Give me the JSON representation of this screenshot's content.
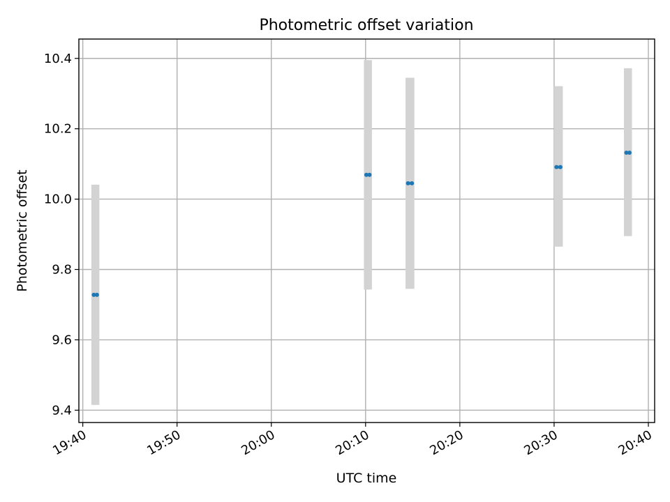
{
  "chart_data": {
    "type": "scatter",
    "title": "Photometric offset variation",
    "xlabel": "UTC time",
    "ylabel": "Photometric offset",
    "x_tick_labels": [
      "19:40",
      "19:50",
      "20:00",
      "20:10",
      "20:20",
      "20:30",
      "20:40"
    ],
    "y_tick_values": [
      9.4,
      9.6,
      9.8,
      10.0,
      10.2,
      10.4
    ],
    "y_tick_labels": [
      "9.4",
      "9.6",
      "9.8",
      "10.0",
      "10.2",
      "10.4"
    ],
    "xlim": [
      "19:39:35",
      "20:40:40"
    ],
    "ylim": [
      9.365,
      10.455
    ],
    "grid": true,
    "legend": "none",
    "errorbar_color": "#d3d3d3",
    "marker_color": "#1f77b4",
    "points": [
      {
        "x": "19:41:10",
        "x2": "19:41:30",
        "y": 9.728,
        "y_low": 9.415,
        "y_high": 10.041
      },
      {
        "x": "20:10:05",
        "x2": "20:10:25",
        "y": 10.069,
        "y_low": 9.743,
        "y_high": 10.395
      },
      {
        "x": "20:14:30",
        "x2": "20:14:55",
        "y": 10.045,
        "y_low": 9.745,
        "y_high": 10.345
      },
      {
        "x": "20:30:15",
        "x2": "20:30:40",
        "y": 10.091,
        "y_low": 9.865,
        "y_high": 10.321
      },
      {
        "x": "20:37:40",
        "x2": "20:38:00",
        "y": 10.132,
        "y_low": 9.895,
        "y_high": 10.372
      }
    ]
  }
}
